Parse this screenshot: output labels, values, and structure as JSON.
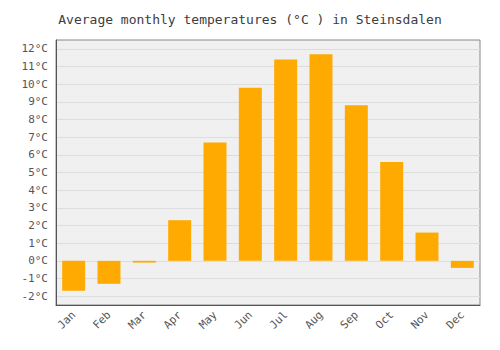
{
  "chart_data": {
    "type": "bar",
    "title": "Average monthly temperatures (°C ) in Steinsdalen",
    "categories": [
      "Jan",
      "Feb",
      "Mar",
      "Apr",
      "May",
      "Jun",
      "Jul",
      "Aug",
      "Sep",
      "Oct",
      "Nov",
      "Dec"
    ],
    "values": [
      -1.7,
      -1.3,
      -0.1,
      2.3,
      6.7,
      9.8,
      11.4,
      11.7,
      8.8,
      5.6,
      1.6,
      -0.4
    ],
    "color": "#FFAA00",
    "ylim": [
      -2.5,
      12.5
    ],
    "yticks": [
      {
        "value": -2,
        "label": "-2°C"
      },
      {
        "value": -1,
        "label": "-1°C"
      },
      {
        "value": 0,
        "label": "0°C"
      },
      {
        "value": 1,
        "label": "1°C"
      },
      {
        "value": 2,
        "label": "2°C"
      },
      {
        "value": 3,
        "label": "3°C"
      },
      {
        "value": 4,
        "label": "4°C"
      },
      {
        "value": 5,
        "label": "5°C"
      },
      {
        "value": 6,
        "label": "6°C"
      },
      {
        "value": 7,
        "label": "7°C"
      },
      {
        "value": 8,
        "label": "8°C"
      },
      {
        "value": 9,
        "label": "9°C"
      },
      {
        "value": 10,
        "label": "10°C"
      },
      {
        "value": 11,
        "label": "11°C"
      },
      {
        "value": 12,
        "label": "12°C"
      }
    ],
    "grid": true
  }
}
